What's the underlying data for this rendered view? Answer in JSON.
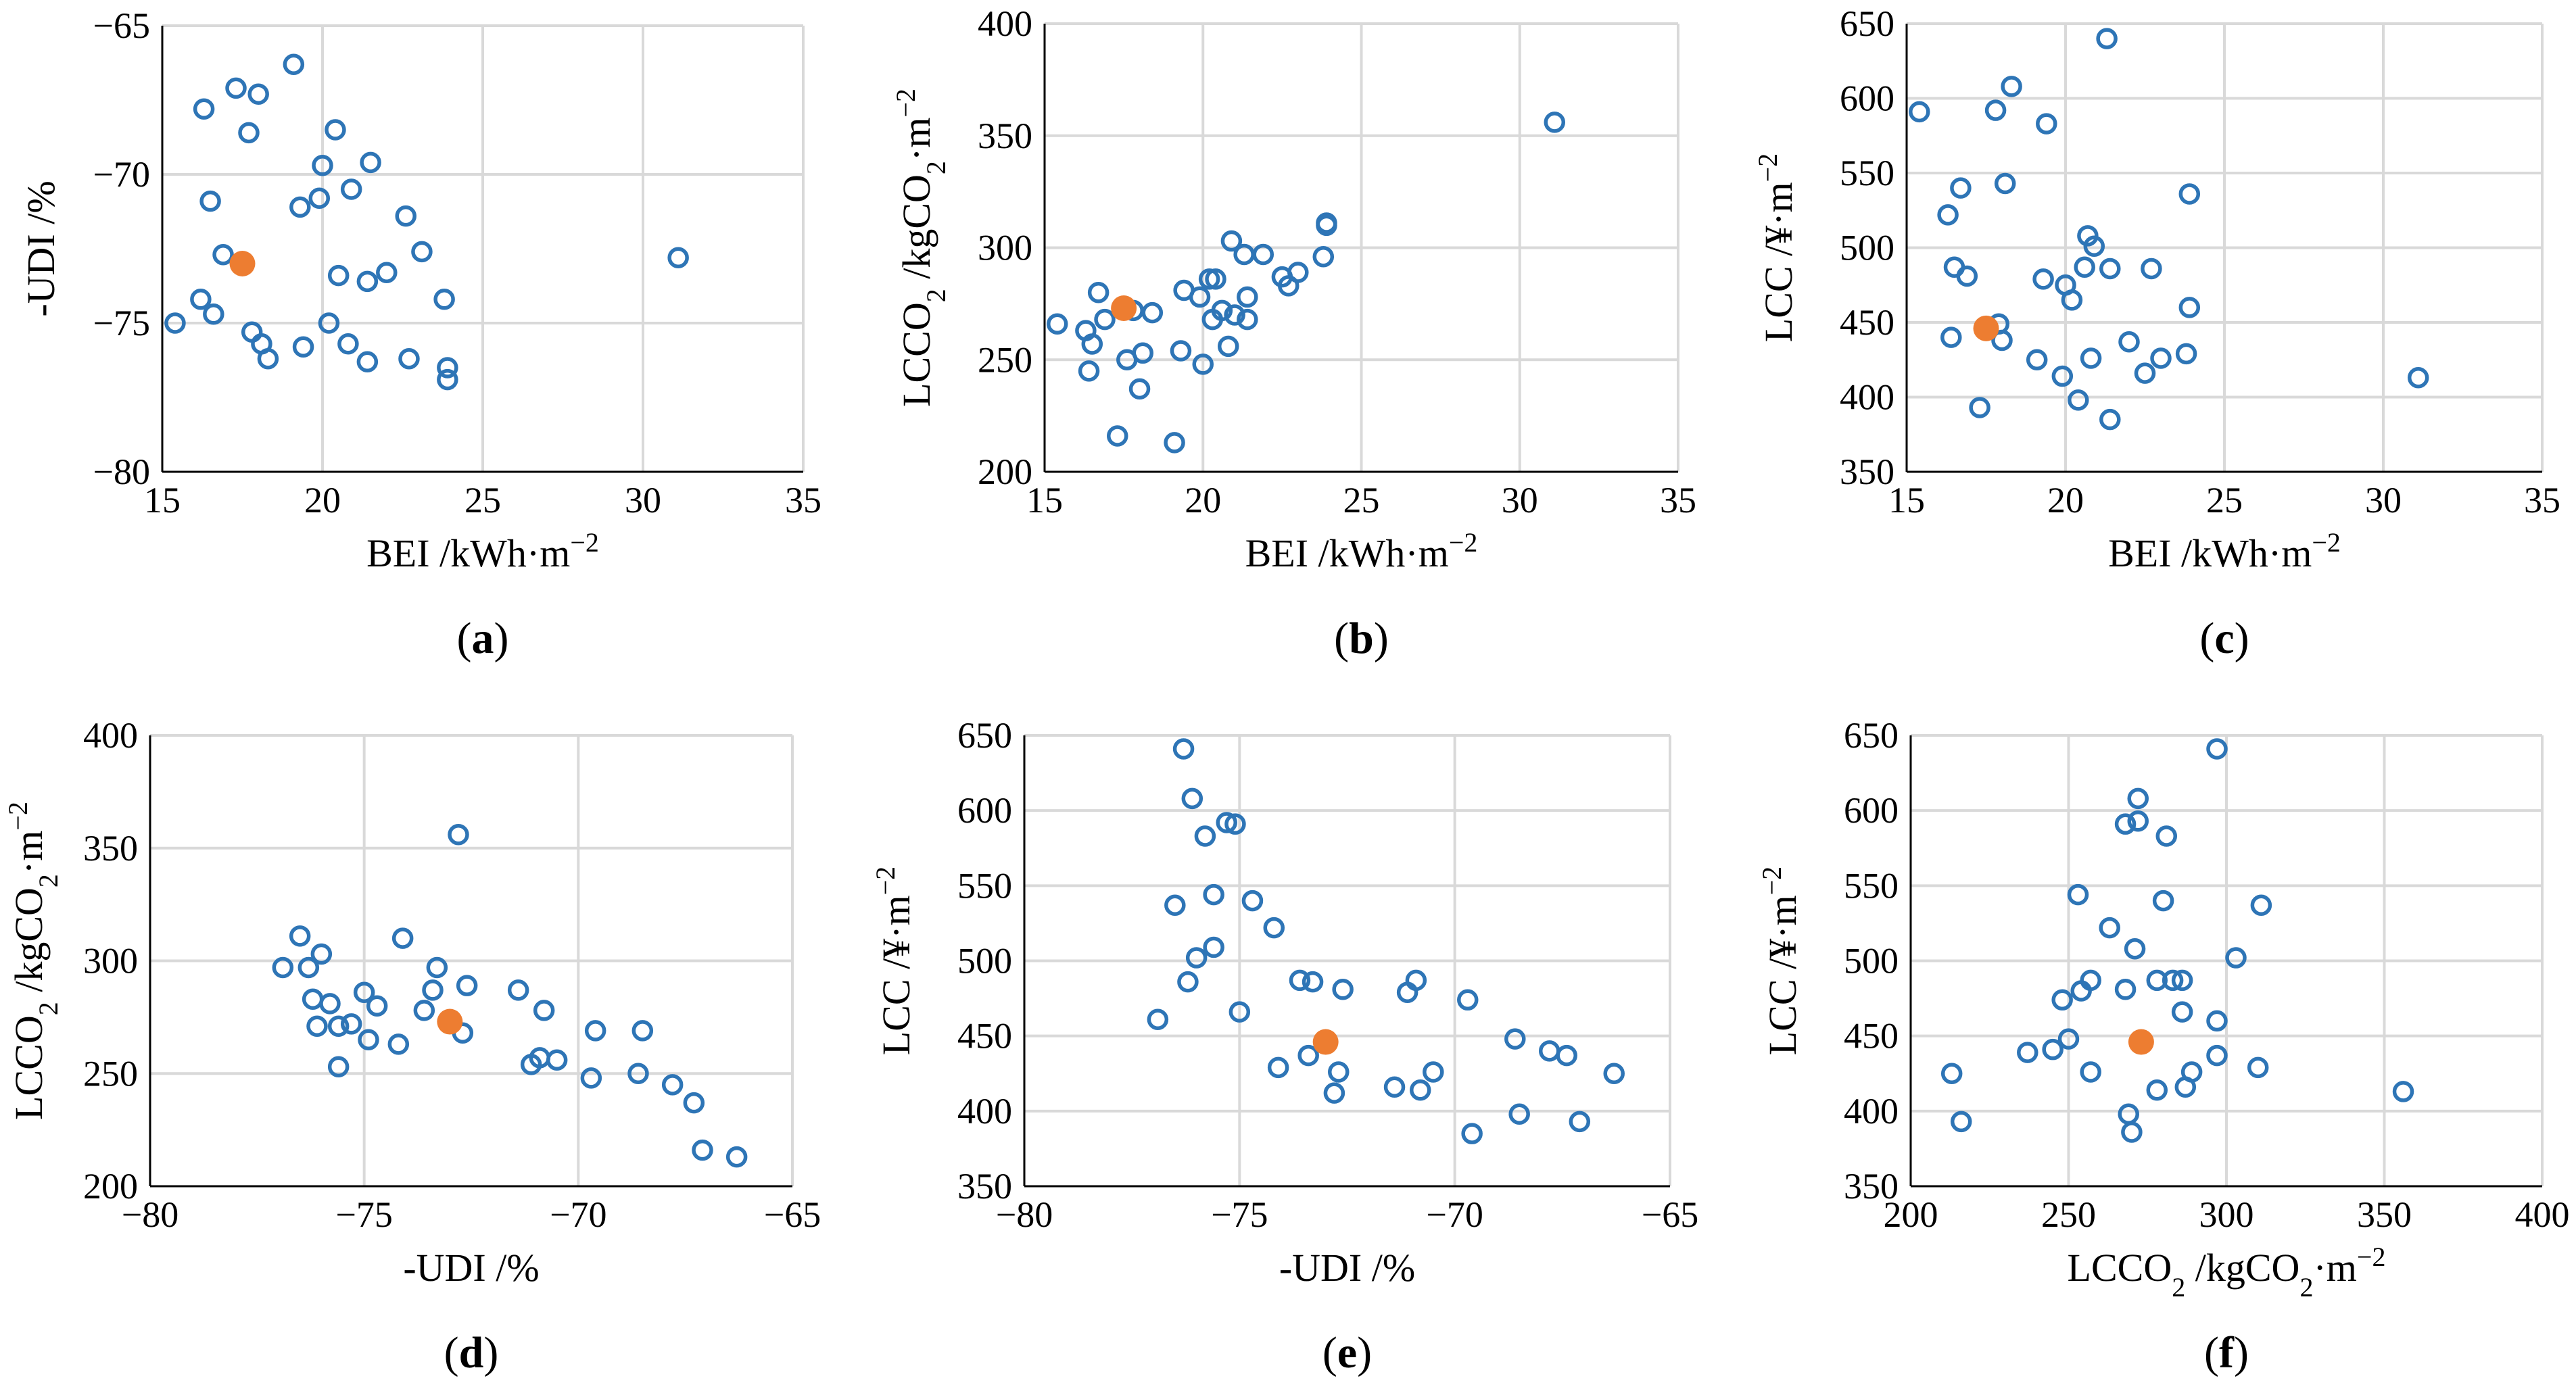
{
  "colors": {
    "series": "#2e75b6",
    "highlight": "#ed7d31",
    "grid": "#d9d9d9",
    "axis": "#000000"
  },
  "chart_data": [
    {
      "id": "a",
      "type": "scatter",
      "panel_label": "(a)",
      "panel_letter": "a",
      "xlabel": "BEI /kWh·m−2",
      "xlabel_main": "BEI /kWh·m",
      "xlabel_sup": "−2",
      "ylabel": "-UDI /%",
      "ylabel_parts": [
        {
          "t": "-UDI /%"
        }
      ],
      "xlim": [
        15,
        35
      ],
      "ylim": [
        -80,
        -65
      ],
      "xticks": [
        15,
        20,
        25,
        30,
        35
      ],
      "yticks": [
        -80,
        -75,
        -70,
        -65
      ],
      "xtick_labels": [
        "15",
        "20",
        "25",
        "30",
        "35"
      ],
      "ytick_labels": [
        "−80",
        "−75",
        "−70",
        "−65"
      ],
      "x": [
        15.4,
        16.2,
        16.3,
        16.5,
        16.6,
        16.9,
        17.3,
        17.7,
        17.8,
        18.0,
        18.1,
        18.3,
        19.1,
        19.3,
        19.4,
        19.9,
        20.0,
        20.2,
        20.4,
        20.5,
        20.8,
        20.9,
        21.4,
        21.5,
        21.4,
        22.0,
        22.6,
        22.7,
        23.1,
        23.8,
        23.9,
        23.9,
        31.1
      ],
      "y": [
        -75.0,
        -74.2,
        -67.8,
        -70.9,
        -74.7,
        -72.7,
        -67.1,
        -68.6,
        -75.3,
        -67.3,
        -75.7,
        -76.2,
        -66.3,
        -71.1,
        -75.8,
        -70.8,
        -69.7,
        -75.0,
        -68.5,
        -73.4,
        -75.7,
        -70.5,
        -73.6,
        -69.6,
        -76.3,
        -73.3,
        -71.4,
        -76.2,
        -72.6,
        -74.2,
        -76.5,
        -76.9,
        -72.8
      ],
      "highlight": {
        "x": 17.5,
        "y": -73.0
      }
    },
    {
      "id": "b",
      "type": "scatter",
      "panel_label": "(b)",
      "panel_letter": "b",
      "xlabel": "BEI /kWh·m−2",
      "xlabel_main": "BEI /kWh·m",
      "xlabel_sup": "−2",
      "ylabel": "LCCO2 /kgCO2·m−2",
      "xlim": [
        15,
        35
      ],
      "ylim": [
        200,
        400
      ],
      "xticks": [
        15,
        20,
        25,
        30,
        35
      ],
      "yticks": [
        200,
        250,
        300,
        350,
        400
      ],
      "xtick_labels": [
        "15",
        "20",
        "25",
        "30",
        "35"
      ],
      "ytick_labels": [
        "200",
        "250",
        "300",
        "350",
        "400"
      ],
      "x": [
        15.4,
        16.3,
        16.4,
        16.5,
        16.7,
        16.9,
        17.3,
        17.6,
        17.8,
        18.0,
        18.1,
        18.4,
        19.1,
        19.3,
        19.4,
        19.9,
        20.0,
        20.2,
        20.3,
        20.4,
        20.6,
        20.8,
        20.9,
        21.0,
        21.3,
        21.4,
        21.4,
        21.9,
        22.5,
        22.7,
        23.0,
        23.8,
        23.9,
        23.9,
        31.1
      ],
      "y": [
        266,
        263,
        245,
        257,
        280,
        268,
        216,
        250,
        272,
        237,
        253,
        271,
        213,
        254,
        281,
        278,
        248,
        286,
        268,
        286,
        272,
        256,
        303,
        270,
        297,
        278,
        268,
        297,
        287,
        283,
        289,
        296,
        311,
        310,
        356
      ],
      "highlight": {
        "x": 17.5,
        "y": 273
      }
    },
    {
      "id": "c",
      "type": "scatter",
      "panel_label": "(c)",
      "panel_letter": "c",
      "xlabel": "BEI /kWh·m−2",
      "xlabel_main": "BEI /kWh·m",
      "xlabel_sup": "−2",
      "ylabel": "LCC /¥·m−2",
      "xlim": [
        15,
        35
      ],
      "ylim": [
        350,
        650
      ],
      "xticks": [
        15,
        20,
        25,
        30,
        35
      ],
      "yticks": [
        350,
        400,
        450,
        500,
        550,
        600,
        650
      ],
      "xtick_labels": [
        "15",
        "20",
        "25",
        "30",
        "35"
      ],
      "ytick_labels": [
        "350",
        "400",
        "450",
        "500",
        "550",
        "600",
        "650"
      ],
      "x": [
        15.4,
        16.3,
        16.4,
        16.5,
        16.7,
        16.9,
        17.3,
        17.8,
        17.9,
        18.0,
        18.1,
        18.3,
        19.1,
        19.3,
        19.4,
        19.9,
        20.0,
        20.2,
        20.4,
        20.6,
        20.7,
        20.8,
        20.9,
        21.3,
        21.4,
        21.4,
        22.0,
        22.5,
        22.7,
        23.0,
        23.8,
        23.9,
        23.9,
        31.1
      ],
      "y": [
        591,
        522,
        440,
        487,
        540,
        481,
        393,
        592,
        449,
        438,
        543,
        608,
        425,
        479,
        583,
        414,
        475,
        465,
        398,
        487,
        508,
        426,
        501,
        640,
        385,
        486,
        437,
        416,
        486,
        426,
        429,
        536,
        460,
        413
      ],
      "highlight": {
        "x": 17.5,
        "y": 446
      }
    },
    {
      "id": "d",
      "type": "scatter",
      "panel_label": "(d)",
      "panel_letter": "d",
      "xlabel": "-UDI /%",
      "ylabel": "LCCO2 /kgCO2·m−2",
      "xlim": [
        -80,
        -65
      ],
      "ylim": [
        200,
        400
      ],
      "xticks": [
        -80,
        -75,
        -70,
        -65
      ],
      "yticks": [
        200,
        250,
        300,
        350,
        400
      ],
      "xtick_labels": [
        "−80",
        "−75",
        "−70",
        "−65"
      ],
      "ytick_labels": [
        "200",
        "250",
        "300",
        "350",
        "400"
      ],
      "x": [
        -76.9,
        -76.5,
        -76.3,
        -76.2,
        -76.1,
        -76.0,
        -75.8,
        -75.6,
        -75.6,
        -75.3,
        -75.0,
        -74.9,
        -74.7,
        -74.2,
        -74.1,
        -73.6,
        -73.4,
        -73.3,
        -72.8,
        -72.7,
        -72.6,
        -71.4,
        -71.1,
        -70.9,
        -70.8,
        -70.5,
        -69.7,
        -69.6,
        -68.6,
        -68.5,
        -67.8,
        -67.3,
        -67.1,
        -66.3
      ],
      "y": [
        297,
        311,
        297,
        283,
        271,
        303,
        281,
        253,
        271,
        272,
        286,
        265,
        280,
        263,
        310,
        278,
        287,
        297,
        356,
        268,
        289,
        287,
        254,
        257,
        278,
        256,
        248,
        269,
        250,
        269,
        245,
        237,
        216,
        213
      ],
      "highlight": {
        "x": -73.0,
        "y": 273
      }
    },
    {
      "id": "e",
      "type": "scatter",
      "panel_label": "(e)",
      "panel_letter": "e",
      "xlabel": "-UDI /%",
      "ylabel": "LCC /¥·m−2",
      "xlim": [
        -80,
        -65
      ],
      "ylim": [
        350,
        650
      ],
      "xticks": [
        -80,
        -75,
        -70,
        -65
      ],
      "yticks": [
        350,
        400,
        450,
        500,
        550,
        600,
        650
      ],
      "xtick_labels": [
        "−80",
        "−75",
        "−70",
        "−65"
      ],
      "ytick_labels": [
        "350",
        "400",
        "450",
        "500",
        "550",
        "600",
        "650"
      ],
      "x": [
        -76.9,
        -76.5,
        -76.3,
        -76.2,
        -76.1,
        -76.0,
        -75.8,
        -75.6,
        -75.6,
        -75.3,
        -75.1,
        -75.0,
        -74.7,
        -74.2,
        -74.1,
        -73.6,
        -73.4,
        -73.3,
        -72.8,
        -72.7,
        -72.6,
        -71.4,
        -71.1,
        -70.9,
        -70.8,
        -70.5,
        -69.7,
        -69.6,
        -68.6,
        -68.5,
        -67.8,
        -67.4,
        -67.1,
        -66.3
      ],
      "y": [
        461,
        537,
        641,
        486,
        608,
        502,
        583,
        544,
        509,
        592,
        591,
        466,
        540,
        522,
        429,
        487,
        437,
        486,
        412,
        426,
        481,
        416,
        479,
        487,
        414,
        426,
        474,
        385,
        448,
        398,
        440,
        437,
        393,
        425
      ],
      "highlight": {
        "x": -73.0,
        "y": 446
      }
    },
    {
      "id": "f",
      "type": "scatter",
      "panel_label": "(f)",
      "panel_letter": "f",
      "xlabel": "LCCO2 /kgCO2·m−2",
      "ylabel": "LCC /¥·m−2",
      "xlim": [
        200,
        400
      ],
      "ylim": [
        350,
        650
      ],
      "xticks": [
        200,
        250,
        300,
        350,
        400
      ],
      "yticks": [
        350,
        400,
        450,
        500,
        550,
        600,
        650
      ],
      "xtick_labels": [
        "200",
        "250",
        "300",
        "350",
        "400"
      ],
      "ytick_labels": [
        "350",
        "400",
        "450",
        "500",
        "550",
        "600",
        "650"
      ],
      "x": [
        213,
        216,
        237,
        245,
        248,
        250,
        253,
        254,
        257,
        257,
        263,
        268,
        268,
        269,
        270,
        271,
        272,
        272,
        278,
        278,
        280,
        281,
        283,
        286,
        286,
        287,
        289,
        297,
        297,
        297,
        303,
        310,
        311,
        356
      ],
      "y": [
        425,
        393,
        439,
        441,
        474,
        448,
        544,
        480,
        426,
        487,
        522,
        591,
        481,
        398,
        386,
        508,
        608,
        593,
        487,
        414,
        540,
        583,
        487,
        466,
        487,
        416,
        426,
        641,
        460,
        437,
        502,
        429,
        537,
        413
      ],
      "highlight": {
        "x": 273,
        "y": 446
      }
    }
  ]
}
